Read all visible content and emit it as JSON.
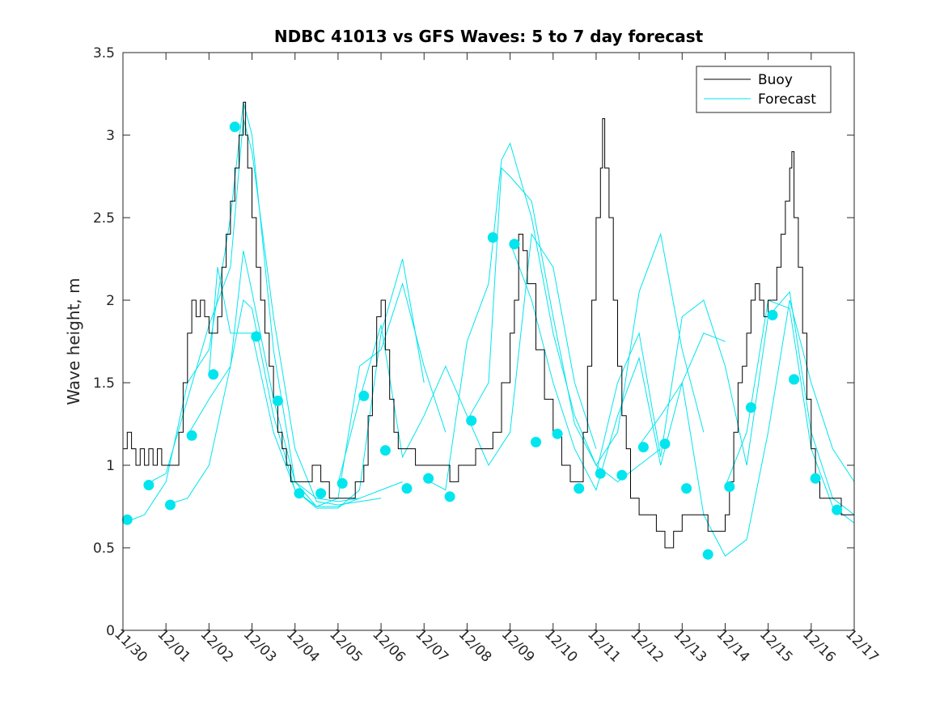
{
  "chart_data": {
    "type": "line",
    "title": "NDBC 41013 vs GFS Waves: 5 to 7 day forecast",
    "xlabel": "",
    "ylabel": "Wave height, m",
    "xlim": [
      0,
      17
    ],
    "ylim": [
      0,
      3.5
    ],
    "x_tick_labels": [
      "11/30",
      "12/01",
      "12/02",
      "12/03",
      "12/04",
      "12/05",
      "12/06",
      "12/07",
      "12/08",
      "12/09",
      "12/10",
      "12/11",
      "12/12",
      "12/13",
      "12/14",
      "12/15",
      "12/16",
      "12/17"
    ],
    "y_tick_values": [
      0,
      0.5,
      1,
      1.5,
      2,
      2.5,
      3,
      3.5
    ],
    "y_tick_labels": [
      "0",
      "0.5",
      "1",
      "1.5",
      "2",
      "2.5",
      "3",
      "3.5"
    ],
    "legend": {
      "position": "top-right",
      "entries": [
        "Buoy",
        "Forecast"
      ]
    },
    "colors": {
      "buoy": "#000000",
      "forecast": "#00e5ee",
      "dots": "#00e5ee",
      "axes": "#262626"
    },
    "buoy": {
      "name": "Buoy",
      "x": [
        0,
        0.1,
        0.2,
        0.3,
        0.4,
        0.5,
        0.6,
        0.7,
        0.8,
        0.9,
        1.0,
        1.1,
        1.2,
        1.3,
        1.4,
        1.5,
        1.6,
        1.7,
        1.8,
        1.9,
        2.0,
        2.1,
        2.2,
        2.3,
        2.4,
        2.5,
        2.6,
        2.7,
        2.8,
        2.85,
        2.9,
        3.0,
        3.1,
        3.2,
        3.3,
        3.4,
        3.5,
        3.6,
        3.7,
        3.8,
        3.9,
        4.0,
        4.2,
        4.4,
        4.6,
        4.8,
        5.0,
        5.2,
        5.4,
        5.5,
        5.6,
        5.7,
        5.8,
        5.9,
        6.0,
        6.1,
        6.2,
        6.3,
        6.4,
        6.6,
        6.8,
        7.0,
        7.2,
        7.4,
        7.6,
        7.8,
        8.0,
        8.2,
        8.4,
        8.6,
        8.8,
        9.0,
        9.1,
        9.2,
        9.3,
        9.4,
        9.6,
        9.8,
        10.0,
        10.2,
        10.4,
        10.6,
        10.7,
        10.8,
        10.9,
        11.0,
        11.1,
        11.15,
        11.2,
        11.3,
        11.4,
        11.5,
        11.6,
        11.7,
        11.8,
        12.0,
        12.2,
        12.4,
        12.6,
        12.8,
        13.0,
        13.2,
        13.4,
        13.6,
        13.8,
        14.0,
        14.1,
        14.2,
        14.3,
        14.4,
        14.5,
        14.6,
        14.7,
        14.8,
        14.9,
        15.0,
        15.2,
        15.3,
        15.4,
        15.5,
        15.55,
        15.6,
        15.7,
        15.8,
        15.9,
        16.0,
        16.1,
        16.2,
        16.3,
        16.5,
        16.7,
        17.0
      ],
      "values": [
        1.1,
        1.2,
        1.1,
        1.0,
        1.1,
        1.0,
        1.1,
        1.0,
        1.1,
        1.0,
        1.0,
        1.0,
        1.0,
        1.2,
        1.5,
        1.8,
        2.0,
        1.9,
        2.0,
        1.9,
        1.8,
        1.8,
        1.9,
        2.2,
        2.4,
        2.6,
        2.8,
        3.0,
        3.2,
        3.0,
        2.8,
        2.5,
        2.2,
        2.0,
        1.8,
        1.6,
        1.4,
        1.2,
        1.1,
        1.0,
        0.9,
        0.9,
        0.9,
        1.0,
        0.9,
        0.8,
        0.8,
        0.8,
        0.9,
        0.9,
        1.0,
        1.3,
        1.6,
        1.9,
        2.0,
        1.7,
        1.4,
        1.2,
        1.1,
        1.1,
        1.0,
        1.0,
        1.0,
        1.0,
        0.9,
        1.0,
        1.0,
        1.1,
        1.1,
        1.2,
        1.5,
        1.8,
        2.0,
        2.4,
        2.3,
        2.1,
        1.7,
        1.4,
        1.2,
        1.0,
        0.9,
        0.9,
        1.2,
        1.6,
        2.0,
        2.5,
        2.8,
        3.1,
        2.8,
        2.5,
        2.0,
        1.6,
        1.3,
        1.1,
        0.8,
        0.7,
        0.7,
        0.6,
        0.5,
        0.6,
        0.7,
        0.7,
        0.7,
        0.6,
        0.6,
        0.7,
        0.9,
        1.2,
        1.5,
        1.6,
        1.8,
        2.0,
        2.1,
        2.0,
        1.9,
        2.0,
        2.2,
        2.4,
        2.6,
        2.8,
        2.9,
        2.5,
        2.2,
        1.8,
        1.4,
        1.1,
        0.9,
        0.8,
        0.8,
        0.8,
        0.7,
        0.7
      ]
    },
    "forecast_series": [
      {
        "x": [
          0,
          0.5,
          1.0,
          1.5,
          2.0,
          2.5,
          2.8,
          3.0,
          3.5,
          4.0,
          4.5,
          5.0,
          5.5
        ],
        "values": [
          0.65,
          0.7,
          0.9,
          1.5,
          1.7,
          2.5,
          3.2,
          3.0,
          1.7,
          0.9,
          0.8,
          0.78,
          0.8
        ]
      },
      {
        "x": [
          0.5,
          1.0,
          1.5,
          2.0,
          2.5,
          2.8,
          3.0,
          3.5,
          4.0,
          4.5,
          5.0,
          5.5,
          6.0
        ],
        "values": [
          0.88,
          0.95,
          1.4,
          1.85,
          2.2,
          3.1,
          2.9,
          1.9,
          1.1,
          0.78,
          0.76,
          0.78,
          0.8
        ]
      },
      {
        "x": [
          1.0,
          1.5,
          2.0,
          2.5,
          2.8,
          3.0,
          3.5,
          4.0,
          4.5,
          5.0,
          5.5,
          6.0,
          6.5
        ],
        "values": [
          0.76,
          0.8,
          1.0,
          1.6,
          2.3,
          2.05,
          1.4,
          0.9,
          0.75,
          0.75,
          0.8,
          0.85,
          0.9
        ]
      },
      {
        "x": [
          1.5,
          2.0,
          2.5,
          2.8,
          3.0,
          3.5,
          4.0,
          4.5,
          5.0,
          5.5,
          6.0,
          6.5,
          7.0
        ],
        "values": [
          1.18,
          1.4,
          1.6,
          2.0,
          1.95,
          1.3,
          0.85,
          0.74,
          0.74,
          0.85,
          1.8,
          2.25,
          1.5
        ]
      },
      {
        "x": [
          2.0,
          2.2,
          2.5,
          3.0,
          3.5,
          4.0,
          4.5,
          5.0,
          5.5,
          6.0,
          6.5,
          7.0,
          7.5
        ],
        "values": [
          1.55,
          2.2,
          1.8,
          1.8,
          1.2,
          0.85,
          0.75,
          0.8,
          1.6,
          1.7,
          2.1,
          1.6,
          1.2
        ]
      },
      {
        "x": [
          5.0,
          5.5,
          6.0,
          6.5,
          7.0,
          7.5,
          8.0,
          8.5,
          9.0,
          9.5,
          10.0,
          10.5,
          11.0
        ],
        "values": [
          0.89,
          1.4,
          1.85,
          1.05,
          1.3,
          1.6,
          1.3,
          1.0,
          1.2,
          2.4,
          2.2,
          1.5,
          1.1
        ]
      },
      {
        "x": [
          7.0,
          7.5,
          8.0,
          8.5,
          8.8,
          9.0,
          9.5,
          10.0,
          10.5,
          11.0,
          11.5,
          12.0,
          12.5
        ],
        "values": [
          0.92,
          0.85,
          1.75,
          2.1,
          2.85,
          2.95,
          2.5,
          1.8,
          1.3,
          1.0,
          0.9,
          1.0,
          1.1
        ]
      },
      {
        "x": [
          8.0,
          8.5,
          8.8,
          9.0,
          9.5,
          10.0,
          10.5,
          11.0,
          11.5,
          12.0,
          12.5,
          13.0,
          13.5
        ],
        "values": [
          1.27,
          1.5,
          2.8,
          2.75,
          2.6,
          1.9,
          1.25,
          1.0,
          1.2,
          2.05,
          2.4,
          1.7,
          1.2
        ]
      },
      {
        "x": [
          9.0,
          9.5,
          10.0,
          10.5,
          11.0,
          11.5,
          12.0,
          12.5,
          13.0,
          13.5,
          14.0
        ],
        "values": [
          2.35,
          2.0,
          1.5,
          1.1,
          0.85,
          1.3,
          1.65,
          1.0,
          1.5,
          1.8,
          1.75
        ]
      },
      {
        "x": [
          11.0,
          11.5,
          12.0,
          12.5,
          13.0,
          13.5,
          14.0,
          14.5,
          15.0,
          15.5,
          16.0,
          16.5,
          17.0
        ],
        "values": [
          0.95,
          1.5,
          1.8,
          1.05,
          1.9,
          2.0,
          1.6,
          1.0,
          1.9,
          2.05,
          1.2,
          0.8,
          0.7
        ]
      },
      {
        "x": [
          12.0,
          12.5,
          13.0,
          13.5,
          14.0,
          14.5,
          15.0,
          15.5,
          16.0,
          16.5,
          17.0
        ],
        "values": [
          1.12,
          1.3,
          1.5,
          0.7,
          0.45,
          0.55,
          1.2,
          2.0,
          1.5,
          1.1,
          0.9
        ]
      },
      {
        "x": [
          14.0,
          14.5,
          15.0,
          15.5,
          16.0,
          16.5,
          17.0
        ],
        "values": [
          0.87,
          1.2,
          2.0,
          1.95,
          1.1,
          0.75,
          0.65
        ]
      }
    ],
    "forecast_dots": {
      "x": [
        0.1,
        0.6,
        1.1,
        1.6,
        2.1,
        2.6,
        3.1,
        3.6,
        4.1,
        4.6,
        5.1,
        5.6,
        6.1,
        6.6,
        7.1,
        7.6,
        8.1,
        8.6,
        9.1,
        9.6,
        10.1,
        10.6,
        11.1,
        11.6,
        12.1,
        12.6,
        13.1,
        13.6,
        14.1,
        14.6,
        15.1,
        15.6,
        16.1,
        16.6
      ],
      "values": [
        0.67,
        0.88,
        0.76,
        1.18,
        1.55,
        3.05,
        1.78,
        1.39,
        0.83,
        0.83,
        0.89,
        1.42,
        1.09,
        0.86,
        0.92,
        0.81,
        1.27,
        2.38,
        2.34,
        1.14,
        1.19,
        0.86,
        0.95,
        0.94,
        1.11,
        1.13,
        0.86,
        0.46,
        0.87,
        1.35,
        1.91,
        1.52,
        0.92,
        0.73
      ]
    }
  }
}
